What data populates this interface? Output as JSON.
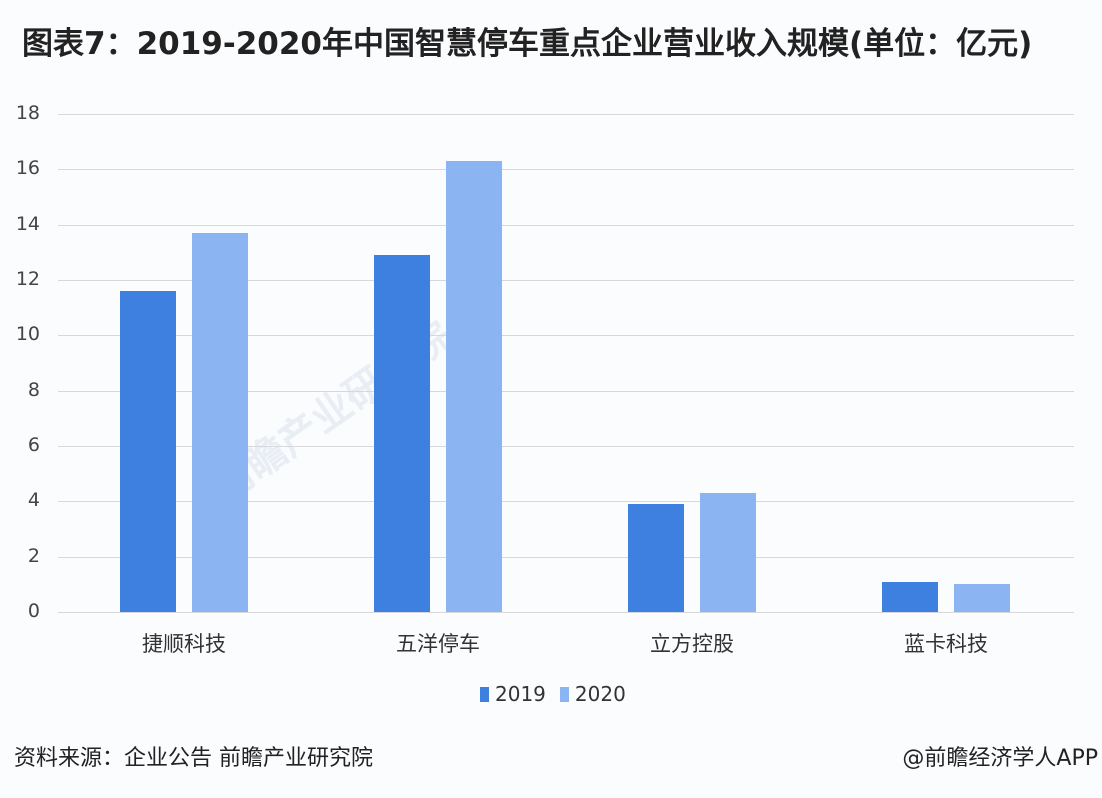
{
  "title": "图表7：2019-2020年中国智慧停车重点企业营业收入规模(单位：亿元)",
  "footer": {
    "source": "资料来源：企业公告 前瞻产业研究院",
    "credit": "@前瞻经济学人APP"
  },
  "watermark": "前瞻产业研究院",
  "colors": {
    "2019": "#3d80e0",
    "2020": "#8ab5f2"
  },
  "chart_data": {
    "type": "bar",
    "title": "图表7：2019-2020年中国智慧停车重点企业营业收入规模(单位：亿元)",
    "xlabel": "",
    "ylabel": "亿元",
    "categories": [
      "捷顺科技",
      "五洋停车",
      "立方控股",
      "蓝卡科技"
    ],
    "series": [
      {
        "name": "2019",
        "values": [
          11.6,
          12.9,
          3.9,
          1.1
        ]
      },
      {
        "name": "2020",
        "values": [
          13.7,
          16.3,
          4.3,
          1.0
        ]
      }
    ],
    "ylim": [
      0,
      18
    ],
    "yticks": [
      "0",
      "2",
      "4",
      "6",
      "8",
      "10",
      "12",
      "14",
      "16",
      "18"
    ],
    "grid": true,
    "legend_position": "bottom"
  }
}
